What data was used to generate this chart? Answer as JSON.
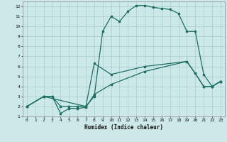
{
  "xlabel": "Humidex (Indice chaleur)",
  "bg_color": "#cce8e8",
  "grid_color": "#b0d0d0",
  "line_color": "#1e6e62",
  "xlim": [
    -0.5,
    23.5
  ],
  "ylim": [
    1,
    12.5
  ],
  "xticks": [
    0,
    1,
    2,
    3,
    4,
    5,
    6,
    7,
    8,
    9,
    10,
    11,
    12,
    13,
    14,
    15,
    16,
    17,
    18,
    19,
    20,
    21,
    22,
    23
  ],
  "yticks": [
    1,
    2,
    3,
    4,
    5,
    6,
    7,
    8,
    9,
    10,
    11,
    12
  ],
  "line1_x": [
    0,
    2,
    3,
    4,
    5,
    6,
    7,
    8,
    9,
    10,
    11,
    12,
    13,
    14,
    15,
    16,
    17,
    18,
    19,
    20,
    21,
    22,
    23
  ],
  "line1_y": [
    2,
    3,
    3,
    2,
    2,
    2,
    2,
    3,
    9.5,
    11,
    10.5,
    11.5,
    12.1,
    12.1,
    11.9,
    11.8,
    11.7,
    11.3,
    9.5,
    9.5,
    5.2,
    4,
    4.5
  ],
  "line2_x": [
    0,
    2,
    7,
    8,
    10,
    14,
    19,
    20,
    21,
    22,
    23
  ],
  "line2_y": [
    2,
    3,
    2,
    6.3,
    5.2,
    6,
    6.5,
    5.3,
    4,
    4,
    4.5
  ],
  "line3_x": [
    0,
    2,
    3,
    4,
    5,
    6,
    7,
    8,
    10,
    14,
    19,
    20,
    21,
    22,
    23
  ],
  "line3_y": [
    2,
    3,
    3,
    1.3,
    1.8,
    1.8,
    1.9,
    3.2,
    4.2,
    5.5,
    6.5,
    5.3,
    4,
    4,
    4.5
  ]
}
